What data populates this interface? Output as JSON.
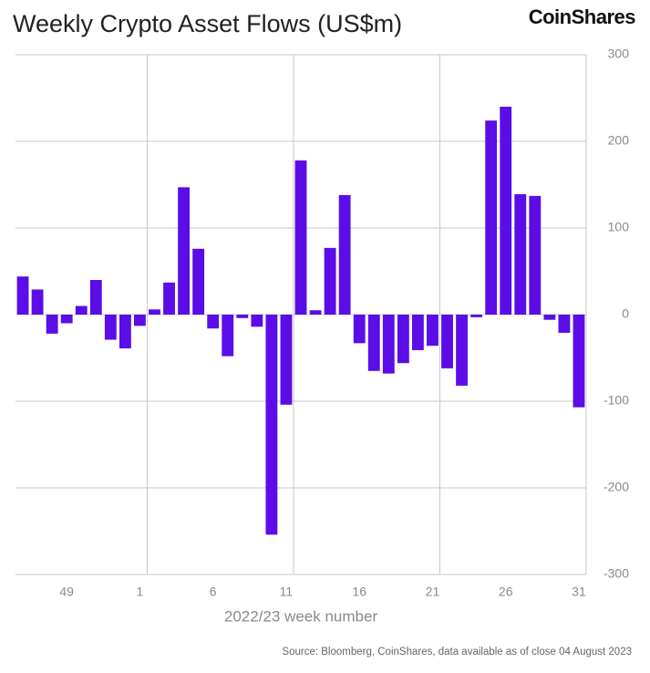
{
  "chart_data": {
    "type": "bar",
    "title": "Weekly Crypto Asset Flows (US$m)",
    "brand": "CoinShares",
    "x_label": "2022/23 week number",
    "source": "Source: Bloomberg, CoinShares, data available as of close 04 August 2023",
    "categories": [
      null,
      null,
      null,
      "49",
      null,
      null,
      null,
      null,
      "1",
      null,
      null,
      null,
      null,
      "6",
      null,
      null,
      null,
      null,
      "11",
      null,
      null,
      null,
      null,
      "16",
      null,
      null,
      null,
      null,
      "21",
      null,
      null,
      null,
      null,
      "26",
      null,
      null,
      null,
      null,
      "31"
    ],
    "values": [
      44,
      29,
      -22,
      -10,
      10,
      40,
      -29,
      -39,
      -13,
      6,
      37,
      147,
      76,
      -16,
      -48,
      -4,
      -14,
      -254,
      -104,
      178,
      5,
      77,
      138,
      -33,
      -65,
      -68,
      -56,
      -41,
      -36,
      -62,
      -82,
      -3,
      224,
      240,
      139,
      137,
      -6,
      -21,
      -107
    ],
    "color": "#5a0de6",
    "ylim": [
      -300,
      300
    ],
    "yticks": [
      -300,
      -200,
      -100,
      0,
      100,
      200,
      300
    ],
    "grid": true
  }
}
